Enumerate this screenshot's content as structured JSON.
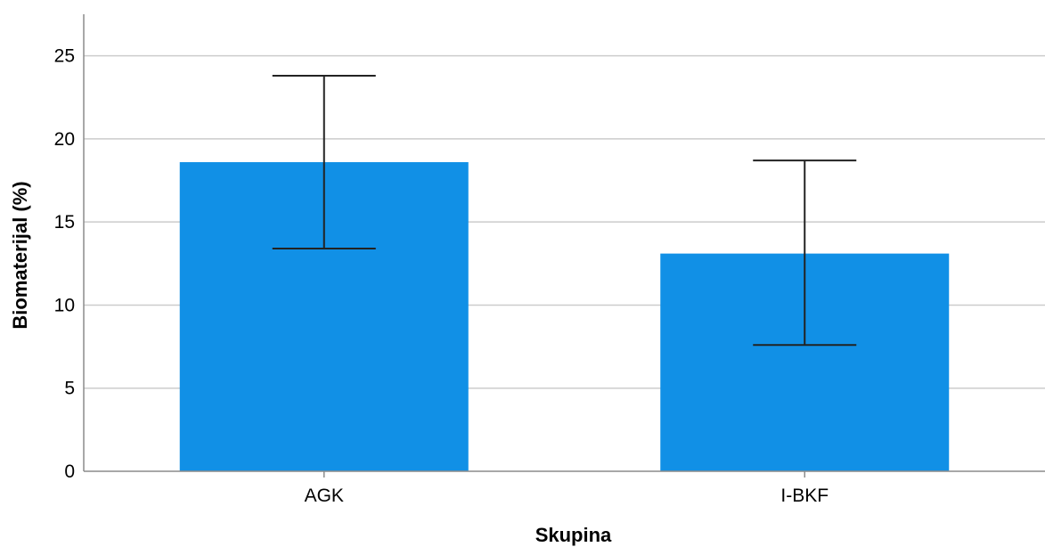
{
  "chart_data": {
    "type": "bar",
    "categories": [
      "AGK",
      "I-BKF"
    ],
    "values": [
      18.6,
      13.1
    ],
    "error_bars": [
      {
        "low": 13.4,
        "high": 23.8
      },
      {
        "low": 7.6,
        "high": 18.7
      }
    ],
    "xlabel": "Skupina",
    "ylabel": "Biomaterijal (%)",
    "ylim": [
      0,
      27.5
    ],
    "yticks": [
      0,
      5,
      10,
      15,
      20,
      25
    ],
    "grid": true,
    "colors": {
      "bar": "#1190e6",
      "grid": "#cccccc",
      "axis": "#8c8c8c",
      "error_bar": "#222222"
    }
  }
}
